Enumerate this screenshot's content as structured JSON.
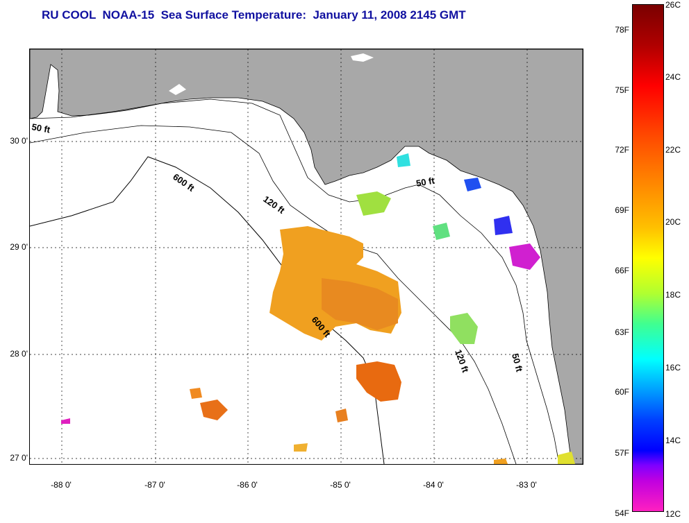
{
  "title": "RU COOL  NOAA-15  Sea Surface Temperature:  January 11, 2008 2145 GMT",
  "y_axis": [
    {
      "label": "30 0'"
    },
    {
      "label": "29 0'"
    },
    {
      "label": "28 0'"
    },
    {
      "label": "27 0'"
    }
  ],
  "x_axis": [
    {
      "label": "-88 0'"
    },
    {
      "label": "-87 0'"
    },
    {
      "label": "-86 0'"
    },
    {
      "label": "-85 0'"
    },
    {
      "label": "-84 0'"
    },
    {
      "label": "-83 0'"
    }
  ],
  "depth_contours": [
    {
      "label": "50 ft"
    },
    {
      "label": "600 ft"
    },
    {
      "label": "120 ft"
    },
    {
      "label": "50 ft"
    },
    {
      "label": "600 ft"
    },
    {
      "label": "120 ft"
    },
    {
      "label": "50 ft"
    }
  ],
  "colorbar": {
    "fahrenheit": [
      "78F",
      "75F",
      "72F",
      "69F",
      "66F",
      "63F",
      "60F",
      "57F",
      "54F"
    ],
    "celsius": [
      "26C",
      "24C",
      "22C",
      "20C",
      "18C",
      "16C",
      "14C",
      "12C"
    ]
  },
  "colors": {
    "land": "#a8a8a8",
    "water": "#ffffff",
    "title": "#1010a0",
    "sst_warm": "#f0a020",
    "sst_hot": "#e86a10"
  }
}
